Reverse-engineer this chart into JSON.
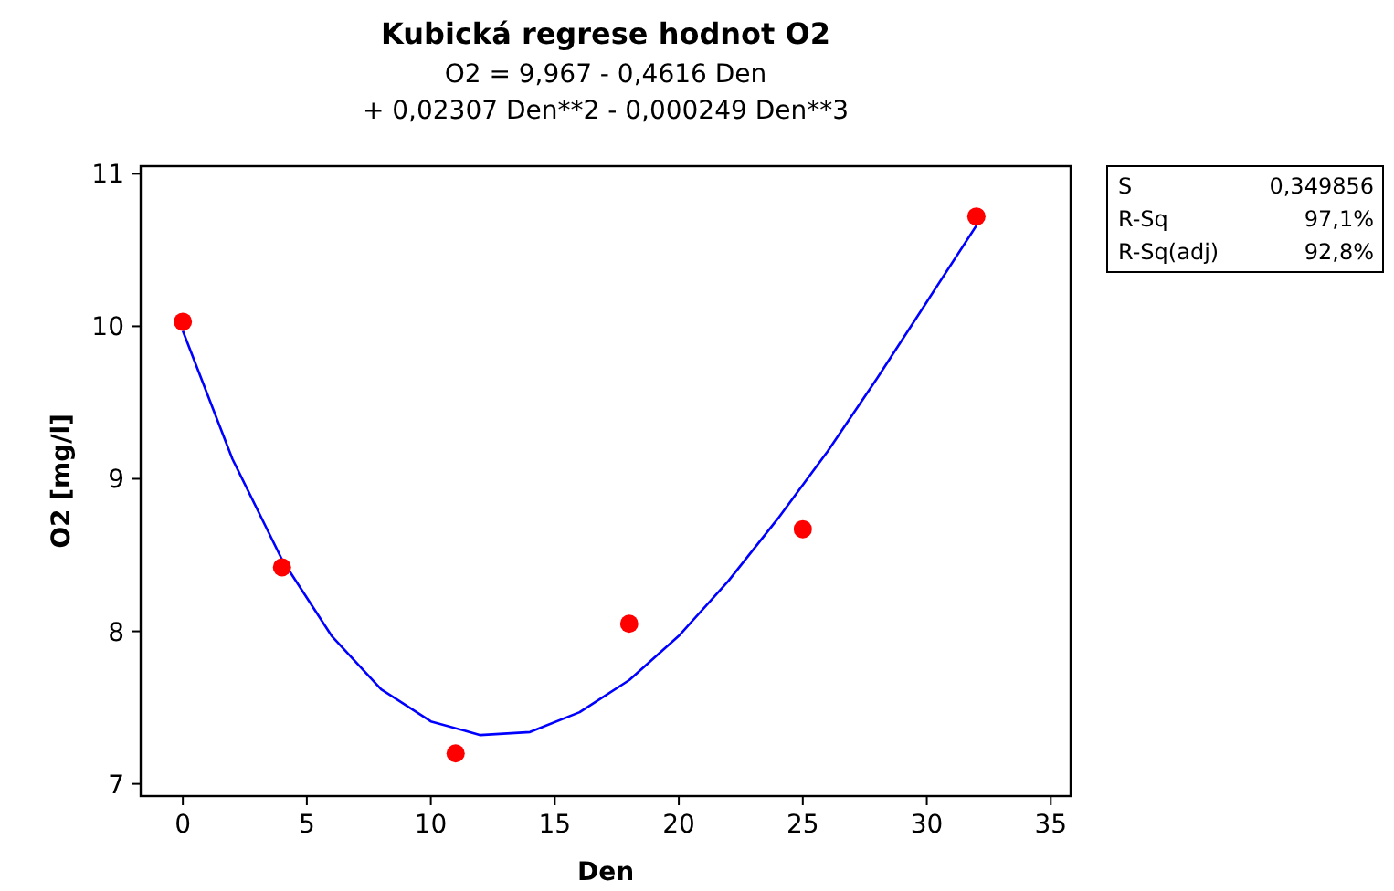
{
  "chart_data": {
    "type": "scatter",
    "title": "Kubická regrese hodnot O2",
    "subtitle": "O2 =  9,967 - 0,4616 Den\n+ 0,02307 Den**2 - 0,000249 Den**3",
    "xlabel": "Den",
    "ylabel": "O2 [mg/l]",
    "xlim": [
      -1.7,
      35.8
    ],
    "xticks": [
      0,
      5,
      10,
      15,
      20,
      25,
      30,
      35
    ],
    "ylim": [
      6.92,
      11.05
    ],
    "yticks": [
      7,
      8,
      9,
      10,
      11
    ],
    "grid": false,
    "series": [
      {
        "type": "line",
        "color": "#0000ff",
        "marker": "none",
        "x": [
          0,
          2,
          4,
          6,
          8,
          10,
          12,
          14,
          16,
          18,
          20,
          22,
          24,
          26,
          28,
          30,
          32
        ],
        "values": [
          9.97,
          9.13,
          8.47,
          7.97,
          7.62,
          7.41,
          7.32,
          7.34,
          7.47,
          7.68,
          7.97,
          8.33,
          8.74,
          9.18,
          9.66,
          10.16,
          10.66
        ]
      },
      {
        "color": "#ff0000",
        "marker": "circle",
        "x": [
          0,
          4,
          11,
          18,
          25,
          32
        ],
        "values": [
          10.03,
          8.42,
          7.2,
          8.05,
          8.67,
          10.72
        ]
      }
    ],
    "annotations": [
      "S",
      "0,349856",
      "R-Sq",
      "97,1%",
      "R-Sq(adj)",
      "92,8%"
    ]
  }
}
